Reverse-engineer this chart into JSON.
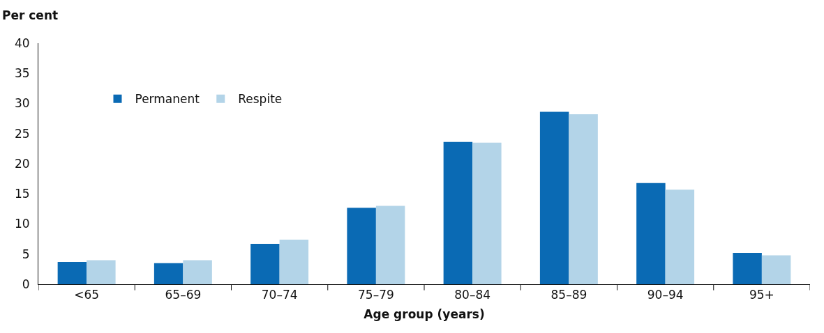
{
  "chart_data": {
    "type": "bar",
    "xlabel": "Age group (years)",
    "ylabel": "Per cent",
    "categories": [
      "<65",
      "65–69",
      "70–74",
      "75–79",
      "80–84",
      "85–89",
      "90–94",
      "95+"
    ],
    "series": [
      {
        "name": "Permanent",
        "color": "#0a6ab4",
        "values": [
          3.7,
          3.5,
          6.7,
          12.7,
          23.6,
          28.6,
          16.8,
          5.2
        ]
      },
      {
        "name": "Respite",
        "color": "#b3d4e8",
        "values": [
          4.0,
          4.0,
          7.4,
          13.0,
          23.5,
          28.2,
          15.7,
          4.8
        ]
      }
    ],
    "ylim": [
      0,
      40
    ],
    "yticks": [
      0,
      5,
      10,
      15,
      20,
      25,
      30,
      35,
      40
    ],
    "legend": "top left"
  }
}
